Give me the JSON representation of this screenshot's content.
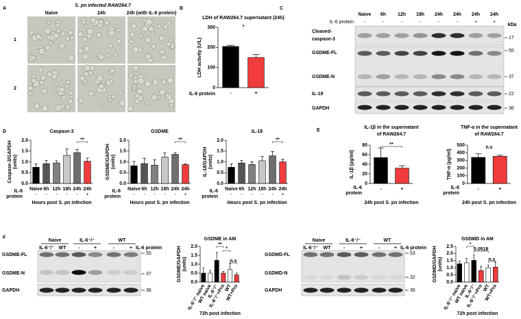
{
  "panel_labels": [
    "A",
    "B",
    "C",
    "D",
    "E",
    "F"
  ],
  "panels": {
    "a": {
      "title": "S. pn infected RAW264.7",
      "columns": [
        "Naive",
        "24h",
        "24h (with IL-6 protein)"
      ],
      "rows": [
        "1",
        "2"
      ]
    },
    "c": {
      "columns": [
        "Naive",
        "6h",
        "12h",
        "18h",
        "24h",
        "24h",
        "24h",
        "24h"
      ],
      "treatment_label": "IL-6 protein",
      "treatment": [
        "-",
        "-",
        "-",
        "-",
        "-",
        "-",
        "+",
        "+"
      ],
      "unit": "kDa",
      "rows": [
        {
          "label": [
            "Cleaved-",
            "caspase-3"
          ],
          "kda": 17
        },
        {
          "label": "GSDME-FL",
          "kda": 55
        },
        {
          "label": "GSDME-N",
          "kda": 37
        },
        {
          "label": "IL-18",
          "kda": 22
        },
        {
          "label": "GAPDH",
          "kda": 36
        }
      ]
    },
    "f_left": {
      "groups": [
        "Naive",
        "IL-6⁻/⁻",
        "WT"
      ],
      "lanes": [
        "IL-6⁻/⁻",
        "WT",
        "-",
        "+",
        "-",
        "+"
      ],
      "treatment_label": "IL-6 protein",
      "rows": [
        {
          "label": "GSDME-FL",
          "kda": 55
        },
        {
          "label": "GSDME-N",
          "kda": 37
        },
        {
          "label": "GAPDH",
          "kda": 36
        }
      ]
    },
    "f_right": {
      "groups": [
        "Naive",
        "IL-6⁻/⁻",
        "WT"
      ],
      "lanes": [
        "IL-6⁻/⁻",
        "WT",
        "-",
        "+",
        "-",
        "+"
      ],
      "treatment_label": "IL-6 protein",
      "rows": [
        {
          "label": "GSDMD-FL",
          "kda": 53
        },
        {
          "label": "GSDMD-N",
          "kda": 32
        },
        {
          "label": "GAPDH",
          "kda": 36
        }
      ]
    }
  },
  "chart_data": [
    {
      "type": "bar",
      "title": "LDH of RAW264.7 supernatant (24h)",
      "ylabel": "LDH activity (U/L)",
      "categories": [
        "-",
        "+"
      ],
      "treatment_label": "IL-6 protein",
      "values": [
        205,
        150
      ],
      "errors": [
        6,
        16
      ],
      "colors": [
        "#000000",
        "#f03c3c"
      ],
      "ylim": [
        0,
        300
      ],
      "yticks": [
        0,
        100,
        200,
        300
      ],
      "annotations": [
        "*"
      ]
    },
    {
      "type": "bar",
      "title": "Caspase-3",
      "ylabel": [
        "Caspase-3/GAPDH",
        "(units)"
      ],
      "categories": [
        "Naive",
        "6h",
        "12h",
        "18h",
        "24h",
        "24h"
      ],
      "treatment_label": [
        "IL-6",
        "protein"
      ],
      "treatment": [
        "-",
        "-",
        "-",
        "-",
        "-",
        "+"
      ],
      "xlabel": "Hours post S. pn infection",
      "values": [
        0.75,
        0.92,
        0.95,
        1.3,
        1.43,
        1.03
      ],
      "errors": [
        0.15,
        0.15,
        0.1,
        0.3,
        0.15,
        0.15
      ],
      "colors": [
        "#000000",
        "#555555",
        "#808080",
        "#c8c8c8",
        "#6e6e6e",
        "#f03c3c"
      ],
      "ylim": [
        0,
        2
      ],
      "yticks": [
        {
          "value": 0,
          "label": "0.0"
        },
        0.5,
        {
          "value": 1,
          "label": "1.0"
        },
        1.5,
        {
          "value": 2,
          "label": "2.0"
        }
      ],
      "annotations": [
        "**"
      ]
    },
    {
      "type": "bar",
      "title": "GSDME",
      "ylabel": [
        "GSDME/GAPDH",
        "(units)"
      ],
      "categories": [
        "Naive",
        "6h",
        "12h",
        "18h",
        "24h",
        "24h"
      ],
      "treatment_label": [
        "IL-6",
        "protein"
      ],
      "treatment": [
        "-",
        "-",
        "-",
        "-",
        "-",
        "+"
      ],
      "xlabel": "Hours post S. pn infection",
      "values": [
        0.82,
        0.92,
        0.85,
        1.22,
        1.35,
        0.87
      ],
      "errors": [
        0.2,
        0.25,
        0.25,
        0.2,
        0.08,
        0.03
      ],
      "colors": [
        "#000000",
        "#555555",
        "#808080",
        "#c8c8c8",
        "#6e6e6e",
        "#f03c3c"
      ],
      "ylim": [
        0,
        2
      ],
      "yticks": [
        {
          "value": 0,
          "label": "0.0"
        },
        0.5,
        {
          "value": 1,
          "label": "1.0"
        },
        1.5,
        {
          "value": 2,
          "label": "2.0"
        }
      ],
      "annotations": [
        "**"
      ]
    },
    {
      "type": "bar",
      "title": "IL-18",
      "ylabel": [
        "IL-18/GAPDH",
        "(units)"
      ],
      "categories": [
        "Naive",
        "6h",
        "12h",
        "18h",
        "24h",
        "24h"
      ],
      "treatment_label": [
        "IL-6",
        "protein"
      ],
      "treatment": [
        "-",
        "-",
        "-",
        "-",
        "-",
        "+"
      ],
      "xlabel": "Hours post S. pn infection",
      "values": [
        0.75,
        0.95,
        0.88,
        1.05,
        1.28,
        1.0
      ],
      "errors": [
        0.15,
        0.12,
        0.12,
        0.2,
        0.2,
        0.12
      ],
      "colors": [
        "#000000",
        "#555555",
        "#808080",
        "#c8c8c8",
        "#6e6e6e",
        "#f03c3c"
      ],
      "ylim": [
        0,
        2
      ],
      "yticks": [
        {
          "value": 0,
          "label": "0.0"
        },
        0.5,
        {
          "value": 1,
          "label": "1.0"
        },
        1.5,
        {
          "value": 2,
          "label": "2.0"
        }
      ],
      "annotations": [
        "**"
      ]
    },
    {
      "type": "bar",
      "title": [
        "IL-1β in the supernatant",
        "of RAW264.7"
      ],
      "ylabel": "IL-1β (pg/ml)",
      "categories": [
        "-",
        "+"
      ],
      "treatment_label": [
        "IL-6",
        "protein"
      ],
      "xlabel": "24h post S. pn infection",
      "values": [
        54,
        32
      ],
      "errors": [
        20,
        5
      ],
      "colors": [
        "#000000",
        "#f03c3c"
      ],
      "ylim": [
        0,
        80
      ],
      "yticks": [
        0,
        20,
        40,
        60,
        80
      ],
      "annotations": [
        "**"
      ]
    },
    {
      "type": "bar",
      "title": [
        "TNF-α in the supernatant",
        "of RAW264.7"
      ],
      "ylabel": "TNF-α (pg/ml)",
      "categories": [
        "-",
        "+"
      ],
      "treatment_label": [
        "IL-6",
        "protein"
      ],
      "xlabel": "24h post S. pn infection",
      "values": [
        340,
        355
      ],
      "errors": [
        50,
        15
      ],
      "colors": [
        "#000000",
        "#f03c3c"
      ],
      "ylim": [
        0,
        500
      ],
      "yticks": [
        0,
        100,
        200,
        300,
        400,
        500
      ],
      "annotations": [
        "n.s"
      ]
    },
    {
      "type": "bar",
      "title": "GSDME in AM",
      "ylabel": [
        "GSDME/GAPDH",
        "(units)"
      ],
      "categories": [
        "IL-6⁻/⁻ naive",
        "WT naive",
        "IL-6⁻/⁻",
        "IL-6⁻/⁻+Pro",
        "WT",
        "WT+Pro"
      ],
      "xlabel": "72h post infection",
      "values": [
        0.5,
        0.5,
        1.22,
        0.5,
        0.7,
        0.4
      ],
      "errors": [
        0.3,
        0.15,
        0.45,
        0.1,
        0.35,
        0.1
      ],
      "colors": [
        "#000000",
        "#ffffff",
        "#000000",
        "#f03c3c",
        "#ffffff",
        "#f03c3c"
      ],
      "ylim": [
        0,
        2
      ],
      "yticks": [
        {
          "value": 0,
          "label": "0.0"
        },
        0.5,
        {
          "value": 1,
          "label": "1.0"
        },
        1.5,
        {
          "value": 2,
          "label": "2.0"
        }
      ],
      "annotations": [
        "**",
        "*",
        "n.s"
      ]
    },
    {
      "type": "bar",
      "title": "GSDMD in AM",
      "ylabel": [
        "GSDMD/GAPDH",
        "(units)"
      ],
      "categories": [
        "IL-6⁻/⁻ naive",
        "WT naive",
        "IL-6⁻/⁻",
        "IL-6⁻/⁻+Pro",
        "WT",
        "WT+Pro"
      ],
      "xlabel": "72h post infection",
      "values": [
        1.28,
        1.35,
        1.52,
        0.8,
        1.0,
        1.05
      ],
      "errors": [
        0.2,
        0.3,
        0.4,
        0.3,
        0.2,
        0.35
      ],
      "colors": [
        "#000000",
        "#ffffff",
        "#000000",
        "#f03c3c",
        "#ffffff",
        "#f03c3c"
      ],
      "ylim": [
        0,
        2.5
      ],
      "yticks": [
        {
          "value": 0,
          "label": "0.0"
        },
        0.5,
        {
          "value": 1,
          "label": "1.0"
        },
        1.5,
        {
          "value": 2,
          "label": "2.0"
        },
        2.5
      ],
      "annotations": [
        "*",
        "0.0518",
        "n.s"
      ]
    }
  ]
}
